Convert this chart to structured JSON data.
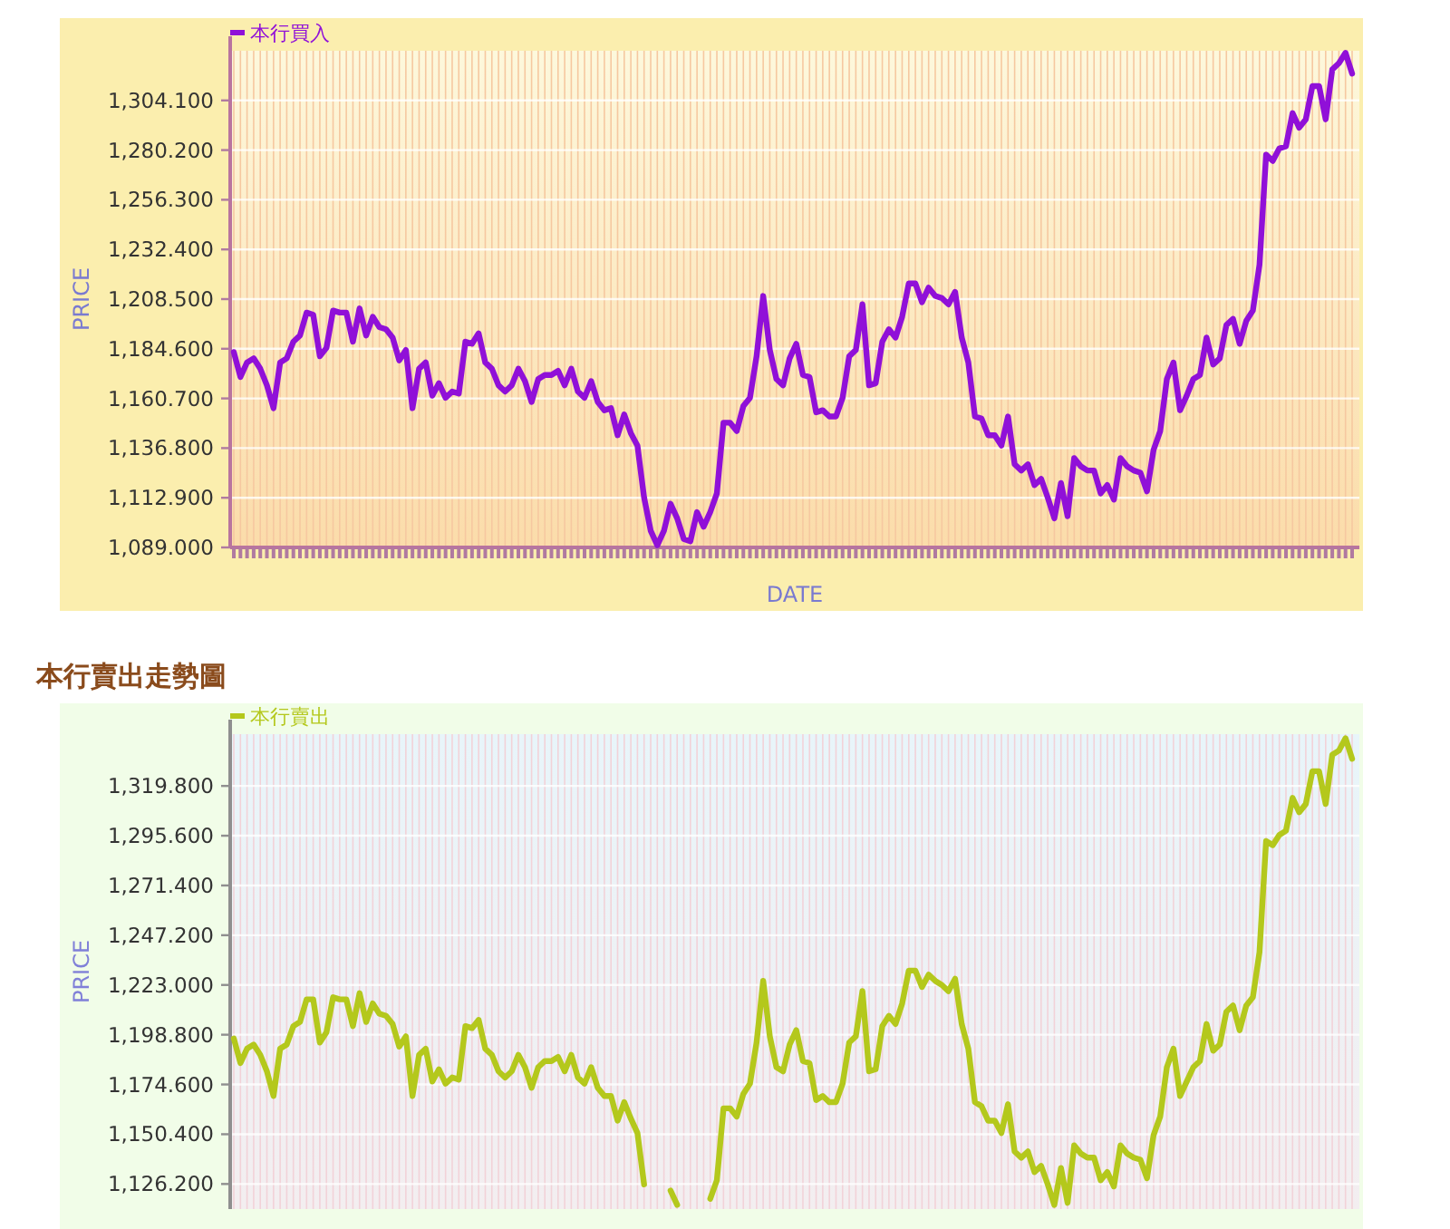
{
  "chart_data": [
    {
      "type": "line",
      "xlabel": "DATE",
      "ylabel": "PRICE",
      "legend": "top left",
      "grid": true,
      "categories": [
        null,
        null,
        null,
        null,
        null,
        null,
        null,
        null,
        null,
        null,
        null,
        null,
        null,
        null,
        null,
        null,
        null,
        null,
        null,
        null,
        null,
        null,
        null,
        null,
        null,
        null,
        null,
        null,
        null,
        null,
        null,
        null,
        null,
        null,
        null,
        null,
        null,
        null,
        null,
        null,
        null,
        null,
        null,
        null,
        null,
        null,
        null,
        null,
        null,
        null,
        null,
        null,
        null,
        null,
        null,
        null,
        null,
        null,
        null,
        null,
        null,
        null,
        null,
        null,
        null,
        null,
        null,
        null,
        null,
        null,
        null,
        null,
        null,
        null,
        null,
        null,
        null,
        null,
        null,
        null,
        null,
        null,
        null,
        null,
        null,
        null,
        null,
        null,
        null,
        null,
        null,
        null,
        null,
        null,
        null,
        null,
        null,
        null,
        null,
        null,
        null,
        null,
        null,
        null,
        null,
        null,
        null,
        null,
        null,
        null,
        null,
        null,
        null,
        null,
        null,
        null,
        null,
        null,
        null,
        null,
        null,
        null,
        null,
        null,
        null,
        null,
        null,
        null,
        null,
        null,
        null,
        null,
        null,
        null,
        null,
        null,
        null,
        null,
        null,
        null,
        null,
        null,
        null,
        null,
        null,
        null,
        null,
        null,
        null,
        null,
        null,
        null,
        null,
        null,
        null,
        null,
        null,
        null,
        null,
        null,
        null,
        null,
        null,
        null,
        null,
        null,
        null,
        null,
        null,
        null
      ],
      "ylim": [
        1089,
        1328
      ],
      "yticks": [
        {
          "value": 1089,
          "label": "1,089.000"
        },
        {
          "value": 1112.9,
          "label": "1,112.900"
        },
        {
          "value": 1136.8,
          "label": "1,136.800"
        },
        {
          "value": 1160.7,
          "label": "1,160.700"
        },
        {
          "value": 1184.6,
          "label": "1,184.600"
        },
        {
          "value": 1208.5,
          "label": "1,208.500"
        },
        {
          "value": 1232.4,
          "label": "1,232.400"
        },
        {
          "value": 1256.3,
          "label": "1,256.300"
        },
        {
          "value": 1280.2,
          "label": "1,280.200"
        },
        {
          "value": 1304.1,
          "label": "1,304.100"
        }
      ],
      "series": [
        {
          "name": "本行買入",
          "color": "#9010d8",
          "values": [
            1183,
            1171,
            1178,
            1180,
            1175,
            1167,
            1156,
            1178,
            1180,
            1188,
            1191,
            1202,
            1201,
            1181,
            1185,
            1203,
            1202,
            1202,
            1188,
            1204,
            1191,
            1200,
            1195,
            1194,
            1190,
            1179,
            1184,
            1156,
            1175,
            1178,
            1162,
            1168,
            1161,
            1164,
            1163,
            1188,
            1187,
            1192,
            1178,
            1175,
            1167,
            1164,
            1167,
            1175,
            1169,
            1159,
            1170,
            1172,
            1172,
            1174,
            1167,
            1175,
            1164,
            1161,
            1169,
            1159,
            1155,
            1156,
            1143,
            1153,
            1144,
            1138,
            1113,
            1097,
            1090,
            1097,
            1110,
            1103,
            1093,
            1092,
            1106,
            1099,
            1106,
            1115,
            1149,
            1149,
            1145,
            1157,
            1161,
            1181,
            1210,
            1184,
            1170,
            1167,
            1180,
            1187,
            1172,
            1171,
            1154,
            1155,
            1152,
            1152,
            1161,
            1181,
            1184,
            1206,
            1167,
            1168,
            1188,
            1194,
            1190,
            1200,
            1216,
            1216,
            1207,
            1214,
            1210,
            1209,
            1206,
            1212,
            1190,
            1178,
            1152,
            1151,
            1143,
            1143,
            1138,
            1152,
            1129,
            1126,
            1129,
            1119,
            1122,
            1113,
            1103,
            1120,
            1104,
            1132,
            1128,
            1126,
            1126,
            1115,
            1119,
            1112,
            1132,
            1128,
            1126,
            1125,
            1116,
            1136,
            1145,
            1170,
            1178,
            1155,
            1162,
            1170,
            1172,
            1190,
            1177,
            1180,
            1196,
            1199,
            1187,
            1198,
            1203,
            1225,
            1278,
            1275,
            1281,
            1282,
            1298,
            1291,
            1295,
            1311,
            1311,
            1295,
            1319,
            1322,
            1327,
            1317
          ]
        }
      ]
    },
    {
      "type": "line",
      "title": "本行賣出走勢圖",
      "ylabel": "PRICE",
      "legend": "top left",
      "grid": true,
      "categories": [
        null,
        null,
        null,
        null,
        null,
        null,
        null,
        null,
        null,
        null,
        null,
        null,
        null,
        null,
        null,
        null,
        null,
        null,
        null,
        null,
        null,
        null,
        null,
        null,
        null,
        null,
        null,
        null,
        null,
        null,
        null,
        null,
        null,
        null,
        null,
        null,
        null,
        null,
        null,
        null,
        null,
        null,
        null,
        null,
        null,
        null,
        null,
        null,
        null,
        null,
        null,
        null,
        null,
        null,
        null,
        null,
        null,
        null,
        null,
        null,
        null,
        null,
        null,
        null,
        null,
        null,
        null,
        null,
        null,
        null,
        null,
        null,
        null,
        null,
        null,
        null,
        null,
        null,
        null,
        null,
        null,
        null,
        null,
        null,
        null,
        null,
        null,
        null,
        null,
        null,
        null,
        null,
        null,
        null,
        null,
        null,
        null,
        null,
        null,
        null,
        null,
        null,
        null,
        null,
        null,
        null,
        null,
        null,
        null,
        null,
        null,
        null,
        null,
        null,
        null,
        null,
        null,
        null,
        null,
        null,
        null,
        null,
        null,
        null,
        null,
        null,
        null,
        null,
        null,
        null,
        null,
        null,
        null,
        null,
        null,
        null,
        null,
        null,
        null,
        null,
        null,
        null,
        null,
        null,
        null,
        null,
        null,
        null,
        null,
        null,
        null,
        null,
        null,
        null,
        null,
        null,
        null,
        null,
        null,
        null,
        null,
        null,
        null,
        null,
        null,
        null,
        null,
        null,
        null,
        null
      ],
      "ylim": [
        1114,
        1345
      ],
      "yticks": [
        {
          "value": 1126.2,
          "label": "1,126.200"
        },
        {
          "value": 1150.4,
          "label": "1,150.400"
        },
        {
          "value": 1174.6,
          "label": "1,174.600"
        },
        {
          "value": 1198.8,
          "label": "1,198.800"
        },
        {
          "value": 1223,
          "label": "1,223.000"
        },
        {
          "value": 1247.2,
          "label": "1,247.200"
        },
        {
          "value": 1271.4,
          "label": "1,271.400"
        },
        {
          "value": 1295.6,
          "label": "1,295.600"
        },
        {
          "value": 1319.8,
          "label": "1,319.800"
        }
      ],
      "series": [
        {
          "name": "本行賣出",
          "color": "#b4c81c",
          "values": [
            1197,
            1185,
            1192,
            1194,
            1189,
            1181,
            1169,
            1192,
            1194,
            1203,
            1205,
            1216,
            1216,
            1195,
            1200,
            1217,
            1216,
            1216,
            1203,
            1219,
            1205,
            1214,
            1209,
            1208,
            1204,
            1193,
            1198,
            1169,
            1189,
            1192,
            1176,
            1182,
            1175,
            1178,
            1177,
            1203,
            1202,
            1206,
            1192,
            1189,
            1181,
            1178,
            1181,
            1189,
            1183,
            1173,
            1183,
            1186,
            1186,
            1188,
            1181,
            1189,
            1178,
            1175,
            1183,
            1173,
            1169,
            1169,
            1157,
            1166,
            1158,
            1151,
            1126,
            null,
            null,
            null,
            1123,
            1116,
            null,
            null,
            null,
            null,
            1119,
            1128,
            1163,
            1163,
            1159,
            1170,
            1175,
            1195,
            1225,
            1198,
            1183,
            1181,
            1194,
            1201,
            1186,
            1185,
            1167,
            1169,
            1166,
            1166,
            1175,
            1195,
            1198,
            1220,
            1181,
            1182,
            1203,
            1208,
            1204,
            1214,
            1230,
            1230,
            1222,
            1228,
            1225,
            1223,
            1220,
            1226,
            1204,
            1192,
            1166,
            1164,
            1157,
            1157,
            1151,
            1165,
            1142,
            1139,
            1142,
            1132,
            1135,
            1126,
            1116,
            1134,
            1117,
            1145,
            1141,
            1139,
            1139,
            1128,
            1132,
            1125,
            1145,
            1141,
            1139,
            1138,
            1129,
            1150,
            1159,
            1183,
            1192,
            1169,
            1176,
            1183,
            1186,
            1204,
            1191,
            1194,
            1210,
            1213,
            1201,
            1213,
            1217,
            1239,
            1293,
            1291,
            1296,
            1298,
            1314,
            1307,
            1311,
            1327,
            1327,
            1311,
            1335,
            1337,
            1343,
            1333
          ]
        }
      ]
    }
  ]
}
